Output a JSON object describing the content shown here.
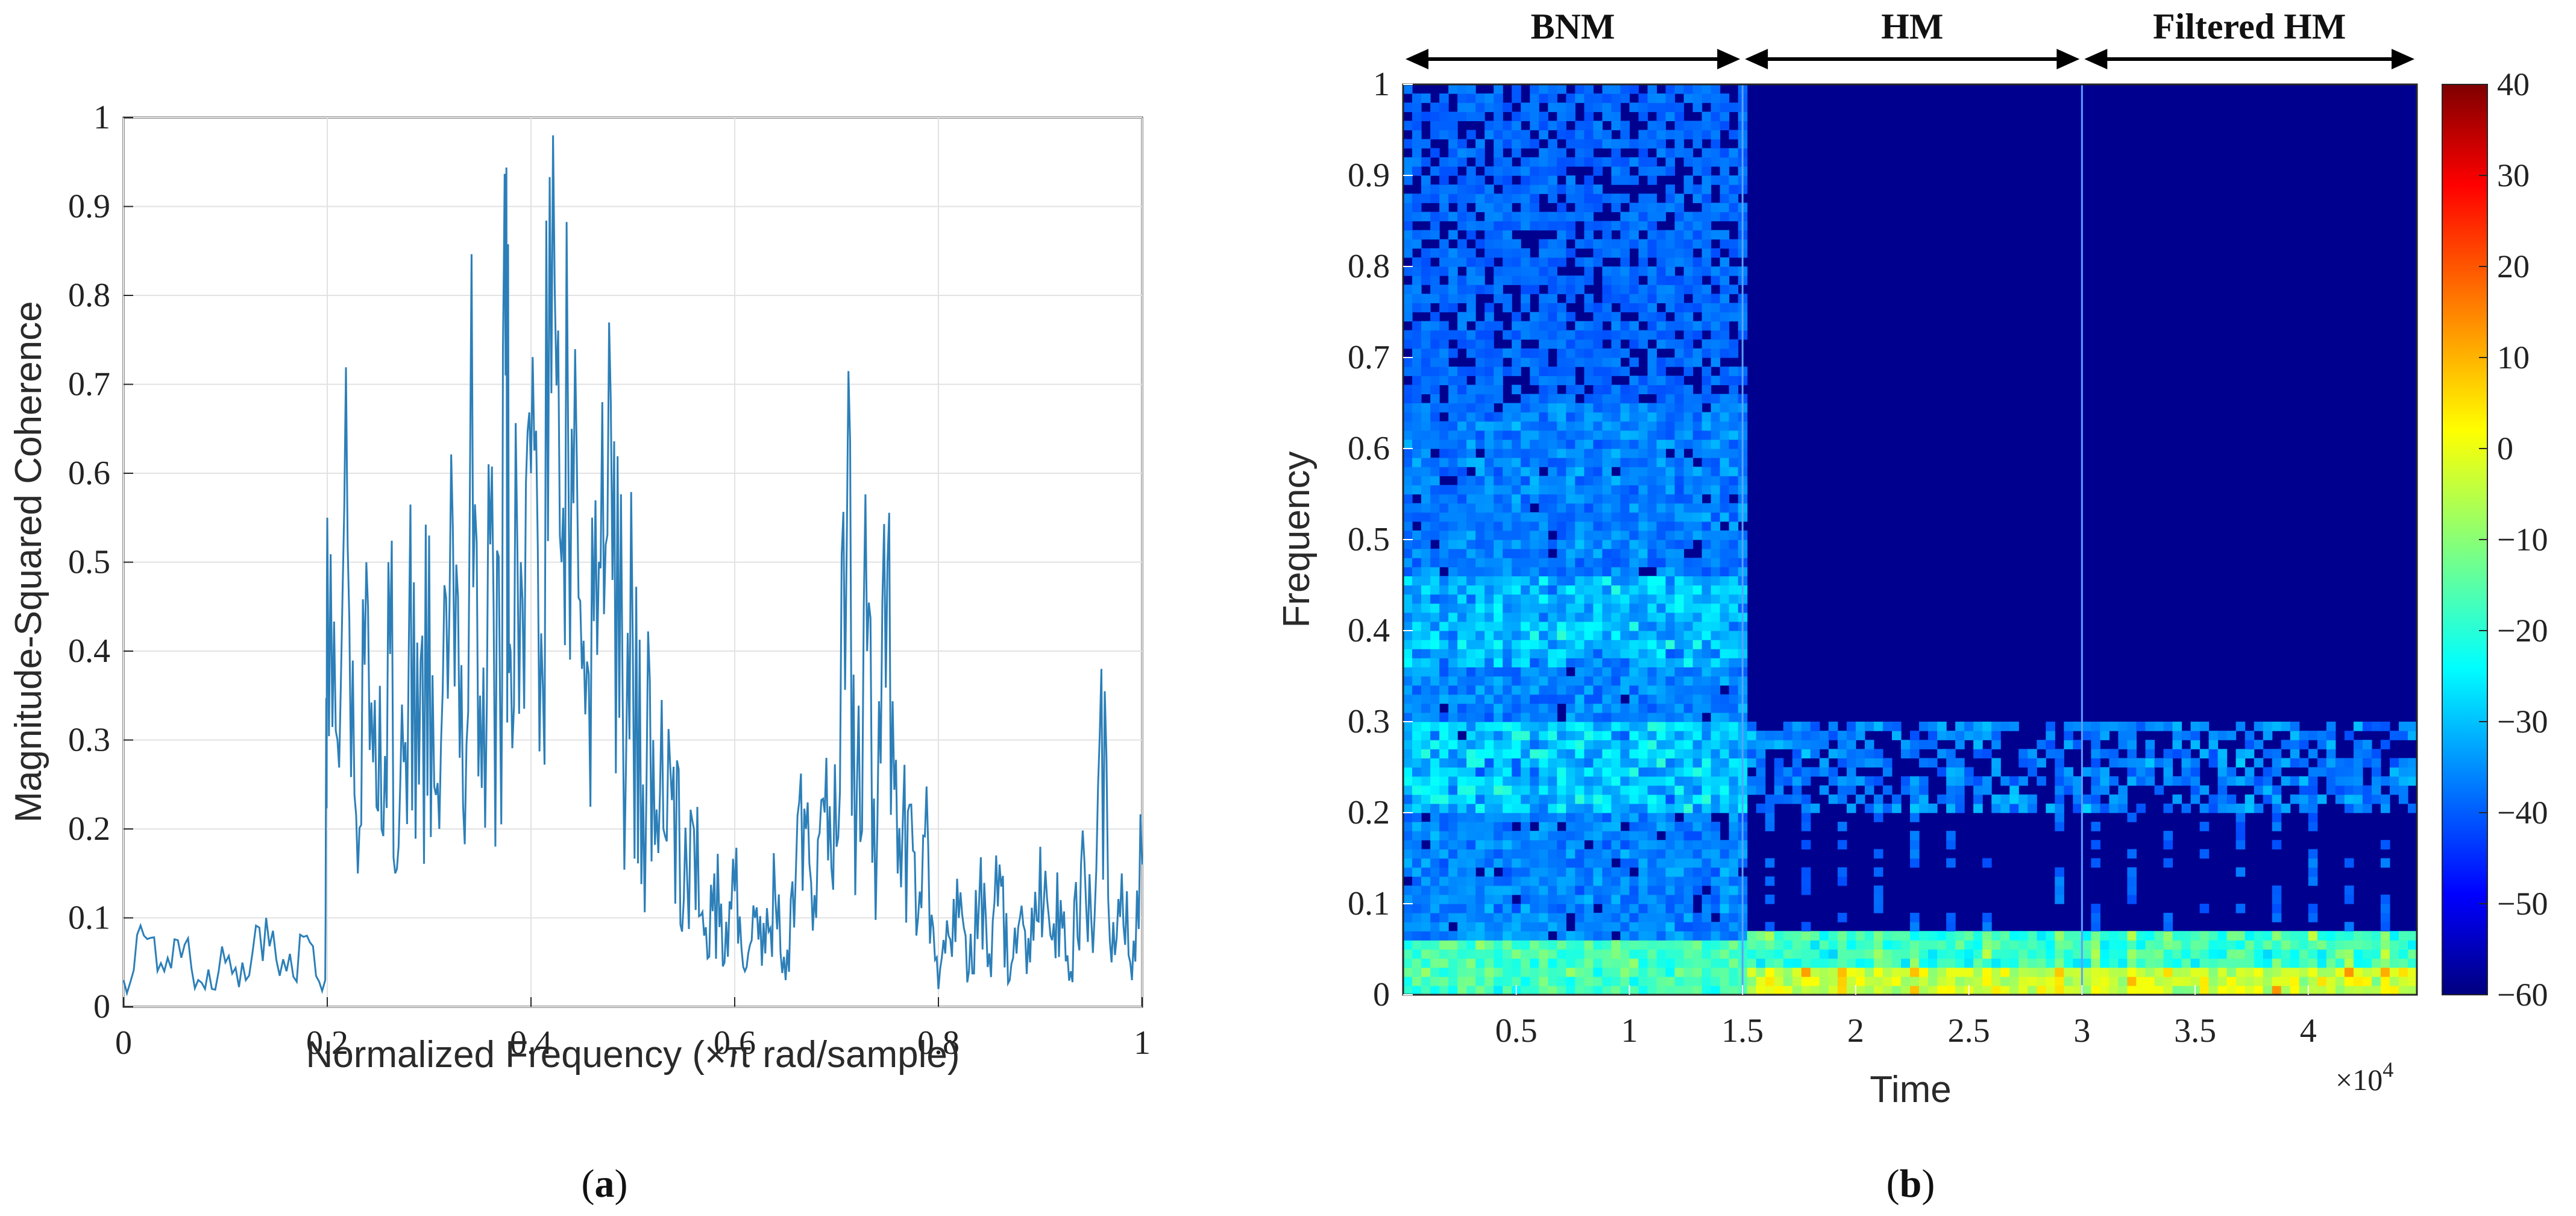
{
  "chart_data": [
    {
      "type": "line",
      "panel": "a",
      "caption": "a",
      "title": "",
      "xlabel": "Normalized Frequency  (×π rad/sample)",
      "ylabel": "Magnitude-Squared Coherence",
      "xlim": [
        0,
        1
      ],
      "ylim": [
        0,
        1
      ],
      "grid": true,
      "color": "#2c7fb8",
      "xticks": [
        0,
        0.2,
        0.4,
        0.6,
        0.8,
        1
      ],
      "xtick_labels": [
        "0",
        "0.2",
        "0.4",
        "0.6",
        "0.8",
        "1"
      ],
      "yticks": [
        0,
        0.1,
        0.2,
        0.3,
        0.4,
        0.5,
        0.6,
        0.7,
        0.8,
        0.9,
        1
      ],
      "ytick_labels": [
        "0",
        "0.1",
        "0.2",
        "0.3",
        "0.4",
        "0.5",
        "0.6",
        "0.7",
        "0.8",
        "0.9",
        "1"
      ],
      "x": [
        0,
        0.02,
        0.04,
        0.06,
        0.08,
        0.1,
        0.12,
        0.14,
        0.16,
        0.18,
        0.198,
        0.2,
        0.21,
        0.22,
        0.23,
        0.24,
        0.25,
        0.26,
        0.27,
        0.28,
        0.29,
        0.3,
        0.31,
        0.32,
        0.33,
        0.34,
        0.35,
        0.36,
        0.37,
        0.375,
        0.38,
        0.39,
        0.4,
        0.41,
        0.42,
        0.43,
        0.44,
        0.45,
        0.46,
        0.47,
        0.48,
        0.49,
        0.5,
        0.51,
        0.52,
        0.53,
        0.54,
        0.55,
        0.56,
        0.57,
        0.58,
        0.59,
        0.6,
        0.61,
        0.62,
        0.63,
        0.64,
        0.65,
        0.66,
        0.67,
        0.68,
        0.69,
        0.7,
        0.71,
        0.72,
        0.73,
        0.74,
        0.75,
        0.76,
        0.77,
        0.78,
        0.79,
        0.8,
        0.81,
        0.82,
        0.83,
        0.84,
        0.85,
        0.86,
        0.87,
        0.88,
        0.89,
        0.9,
        0.91,
        0.92,
        0.93,
        0.94,
        0.95,
        0.96,
        0.97,
        0.98,
        0.99,
        1
      ],
      "y": [
        0.03,
        0.08,
        0.04,
        0.07,
        0.02,
        0.05,
        0.03,
        0.1,
        0.04,
        0.08,
        0.03,
        0.55,
        0.3,
        0.52,
        0.15,
        0.45,
        0.22,
        0.5,
        0.18,
        0.4,
        0.25,
        0.53,
        0.2,
        0.45,
        0.28,
        0.58,
        0.35,
        0.52,
        0.3,
        0.71,
        0.4,
        0.5,
        0.6,
        0.42,
        0.69,
        0.5,
        0.65,
        0.38,
        0.55,
        0.68,
        0.48,
        0.35,
        0.4,
        0.25,
        0.3,
        0.2,
        0.27,
        0.12,
        0.2,
        0.08,
        0.15,
        0.05,
        0.13,
        0.04,
        0.1,
        0.06,
        0.12,
        0.03,
        0.15,
        0.2,
        0.1,
        0.28,
        0.18,
        0.52,
        0.25,
        0.4,
        0.2,
        0.5,
        0.15,
        0.22,
        0.1,
        0.18,
        0.02,
        0.08,
        0.1,
        0.04,
        0.12,
        0.06,
        0.16,
        0.03,
        0.1,
        0.05,
        0.18,
        0.08,
        0.12,
        0.04,
        0.16,
        0.1,
        0.38,
        0.05,
        0.15,
        0.03,
        0.16
      ]
    },
    {
      "type": "heatmap",
      "panel": "b",
      "caption": "b",
      "title": "",
      "xlabel": "Time",
      "ylabel": "Frequency",
      "x_exponent_label": "×10",
      "x_exponent_power": "4",
      "xlim": [
        0,
        44800
      ],
      "ylim": [
        0,
        1
      ],
      "xticks": [
        5000,
        10000,
        15000,
        20000,
        25000,
        30000,
        35000,
        40000
      ],
      "xtick_labels": [
        "0.5",
        "1",
        "1.5",
        "2",
        "2.5",
        "3",
        "3.5",
        "4"
      ],
      "yticks": [
        0,
        0.1,
        0.2,
        0.3,
        0.4,
        0.5,
        0.6,
        0.7,
        0.8,
        0.9,
        1
      ],
      "ytick_labels": [
        "0",
        "0.1",
        "0.2",
        "0.3",
        "0.4",
        "0.5",
        "0.6",
        "0.7",
        "0.8",
        "0.9",
        "1"
      ],
      "colorbar": {
        "min": -60,
        "max": 40,
        "ticks": [
          40,
          30,
          20,
          10,
          0,
          -10,
          -20,
          -30,
          -40,
          -50,
          -60
        ],
        "tick_labels": [
          "40",
          "30",
          "20",
          "10",
          "0",
          "−10",
          "−20",
          "−30",
          "−40",
          "−50",
          "−60"
        ],
        "colormap": "jet"
      },
      "segments": [
        {
          "label": "BNM",
          "start": 0,
          "end": 15000
        },
        {
          "label": "HM",
          "start": 15000,
          "end": 30000
        },
        {
          "label": "Filtered HM",
          "start": 30000,
          "end": 44800
        }
      ]
    }
  ]
}
